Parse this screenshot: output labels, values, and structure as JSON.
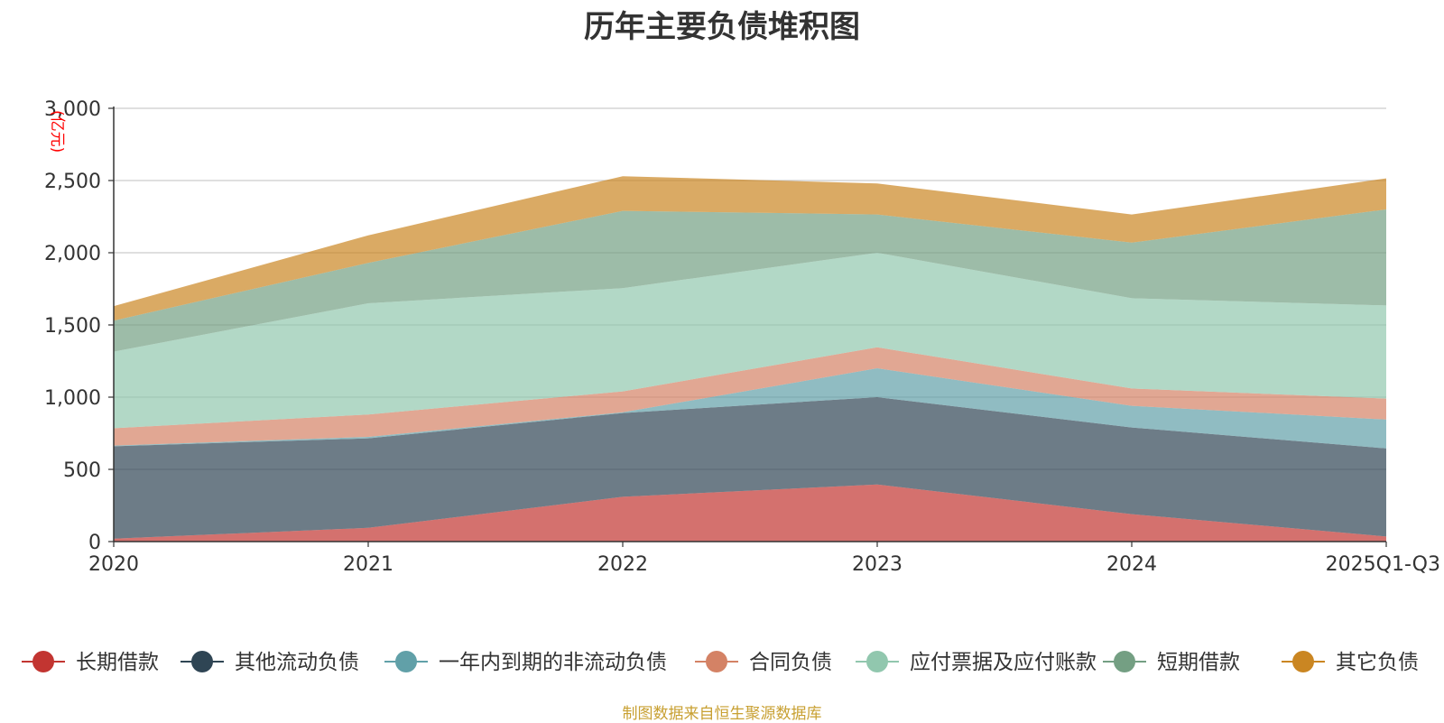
{
  "chart_data": {
    "type": "area",
    "stacked": true,
    "title": "历年主要负债堆积图",
    "ylabel": "(亿元)",
    "xlabel": "",
    "categories": [
      "2020",
      "2021",
      "2022",
      "2023",
      "2024",
      "2025Q1-Q3"
    ],
    "ylim": [
      0,
      3000
    ],
    "yticks": [
      0,
      500,
      1000,
      1500,
      2000,
      2500,
      3000
    ],
    "ytick_labels": [
      "0",
      "500",
      "1,000",
      "1,500",
      "2,000",
      "2,500",
      "3,000"
    ],
    "grid": true,
    "legend_position": "bottom",
    "series": [
      {
        "name": "长期借款",
        "color": "#c23531",
        "values": [
          20,
          95,
          310,
          395,
          190,
          35
        ]
      },
      {
        "name": "其他流动负债",
        "color": "#2f4554",
        "values": [
          640,
          620,
          580,
          605,
          600,
          610
        ]
      },
      {
        "name": "一年内到期的非流动负债",
        "color": "#61a0a8",
        "values": [
          5,
          10,
          5,
          200,
          150,
          200
        ]
      },
      {
        "name": "合同负债",
        "color": "#d48265",
        "values": [
          120,
          155,
          145,
          145,
          120,
          145
        ]
      },
      {
        "name": "应付票据及应付账款",
        "color": "#91c7ae",
        "values": [
          530,
          770,
          715,
          655,
          625,
          645
        ]
      },
      {
        "name": "短期借款",
        "color": "#749f83",
        "values": [
          215,
          280,
          535,
          265,
          385,
          665
        ]
      },
      {
        "name": "其它负债",
        "color": "#ca8622",
        "values": [
          100,
          190,
          240,
          215,
          195,
          215
        ]
      }
    ]
  },
  "footer": {
    "source": "制图数据来自恒生聚源数据库"
  }
}
